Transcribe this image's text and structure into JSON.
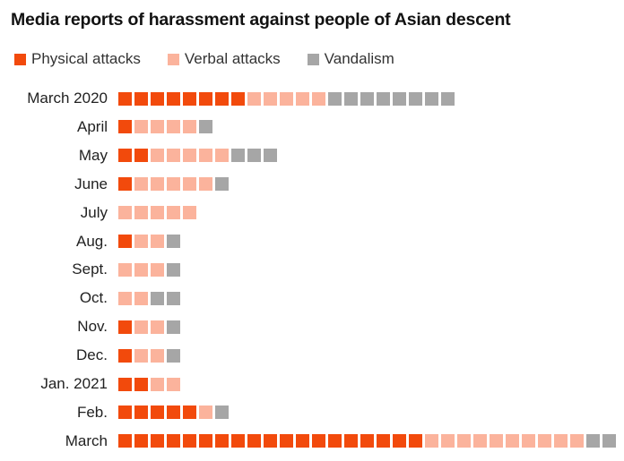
{
  "chart_data": {
    "type": "waffle-bar",
    "title": "Media reports of harassment against people of Asian descent",
    "series": [
      {
        "name": "Physical attacks",
        "color": "#f24a0c"
      },
      {
        "name": "Verbal attacks",
        "color": "#fbb39c"
      },
      {
        "name": "Vandalism",
        "color": "#a6a6a6"
      }
    ],
    "categories": [
      "March 2020",
      "April",
      "May",
      "June",
      "July",
      "Aug.",
      "Sept.",
      "Oct.",
      "Nov.",
      "Dec.",
      "Jan. 2021",
      "Feb.",
      "March"
    ],
    "values": {
      "Physical attacks": [
        8,
        1,
        2,
        1,
        0,
        1,
        0,
        0,
        1,
        1,
        2,
        5,
        19
      ],
      "Verbal attacks": [
        5,
        4,
        5,
        5,
        5,
        2,
        3,
        2,
        2,
        2,
        2,
        1,
        10
      ],
      "Vandalism": [
        8,
        1,
        3,
        1,
        0,
        1,
        1,
        2,
        1,
        1,
        0,
        1,
        2
      ]
    },
    "unit": "one square per report"
  }
}
